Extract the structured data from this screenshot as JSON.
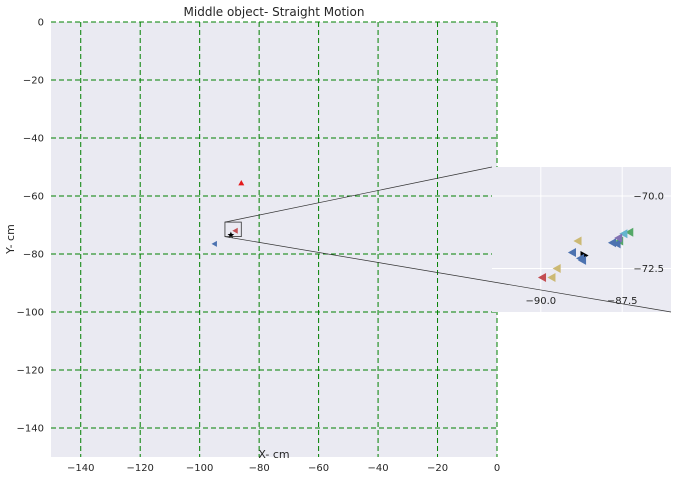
{
  "chart_data": [
    {
      "type": "scatter",
      "title": "Middle object- Straight Motion",
      "xlabel": "X- cm",
      "ylabel": "Y- cm",
      "xlim": [
        -150,
        0
      ],
      "ylim": [
        -150,
        0
      ],
      "xticks": [
        -140,
        -120,
        -100,
        -80,
        -60,
        -40,
        -20,
        0
      ],
      "yticks": [
        0,
        -20,
        -40,
        -60,
        -80,
        -100,
        -120,
        -140
      ],
      "xtick_labels": [
        "−140",
        "−120",
        "−100",
        "−80",
        "−60",
        "−40",
        "−20",
        "0"
      ],
      "ytick_labels": [
        "0",
        "−20",
        "−40",
        "−60",
        "−80",
        "−100",
        "−120",
        "−140"
      ],
      "grid": true,
      "grid_color": "#008000",
      "grid_style": "dashed",
      "background": "#eaeaf2",
      "points": [
        {
          "x": -86.0,
          "y": -55.5,
          "marker": "triangle-up",
          "color": "#e41a1c"
        },
        {
          "x": -95.0,
          "y": -76.5,
          "marker": "triangle-left",
          "color": "#4c72b0"
        },
        {
          "x": -89.5,
          "y": -73.5,
          "marker": "star",
          "color": "#000000"
        },
        {
          "x": -88.0,
          "y": -72.0,
          "marker": "triangle-left",
          "color": "#c44e52"
        }
      ],
      "zoom_box": {
        "xlim": [
          -91.5,
          -86.0
        ],
        "ylim": [
          -74.0,
          -69.0
        ]
      }
    },
    {
      "type": "scatter",
      "title": "",
      "xlim": [
        -91.5,
        -86.0
      ],
      "ylim": [
        -74.0,
        -69.0
      ],
      "xticks": [
        -90.0,
        -87.5
      ],
      "yticks": [
        -70.0,
        -72.5
      ],
      "xtick_labels": [
        "−90.0",
        "−87.5"
      ],
      "ytick_labels": [
        "−70.0",
        "−72.5"
      ],
      "grid": true,
      "grid_color": "#ffffff",
      "background": "#eaeaf2",
      "points": [
        {
          "x": -88.86,
          "y": -71.55,
          "marker": "triangle-left",
          "color": "#ccb974"
        },
        {
          "x": -89.03,
          "y": -71.95,
          "marker": "triangle-left",
          "color": "#4c72b0"
        },
        {
          "x": -88.67,
          "y": -72.05,
          "marker": "triangle-right",
          "color": "#000000"
        },
        {
          "x": -88.78,
          "y": -72.15,
          "marker": "triangle-left",
          "color": "#4c72b0"
        },
        {
          "x": -88.72,
          "y": -72.22,
          "marker": "triangle-left",
          "color": "#4c72b0"
        },
        {
          "x": -89.5,
          "y": -72.5,
          "marker": "triangle-left",
          "color": "#ccb974"
        },
        {
          "x": -89.66,
          "y": -72.81,
          "marker": "triangle-left",
          "color": "#ccb974"
        },
        {
          "x": -89.95,
          "y": -72.81,
          "marker": "triangle-left",
          "color": "#c44e52"
        },
        {
          "x": -87.27,
          "y": -71.25,
          "marker": "triangle-left",
          "color": "#55a868"
        },
        {
          "x": -87.45,
          "y": -71.3,
          "marker": "triangle-left",
          "color": "#64b5cd"
        },
        {
          "x": -87.58,
          "y": -71.55,
          "marker": "triangle-left",
          "color": "#55a868"
        },
        {
          "x": -87.8,
          "y": -71.61,
          "marker": "triangle-left",
          "color": "#4c72b0"
        },
        {
          "x": -87.66,
          "y": -71.65,
          "marker": "triangle-left",
          "color": "#4c72b0"
        },
        {
          "x": -87.61,
          "y": -71.45,
          "marker": "triangle-left",
          "color": "#8172b2"
        }
      ]
    }
  ]
}
